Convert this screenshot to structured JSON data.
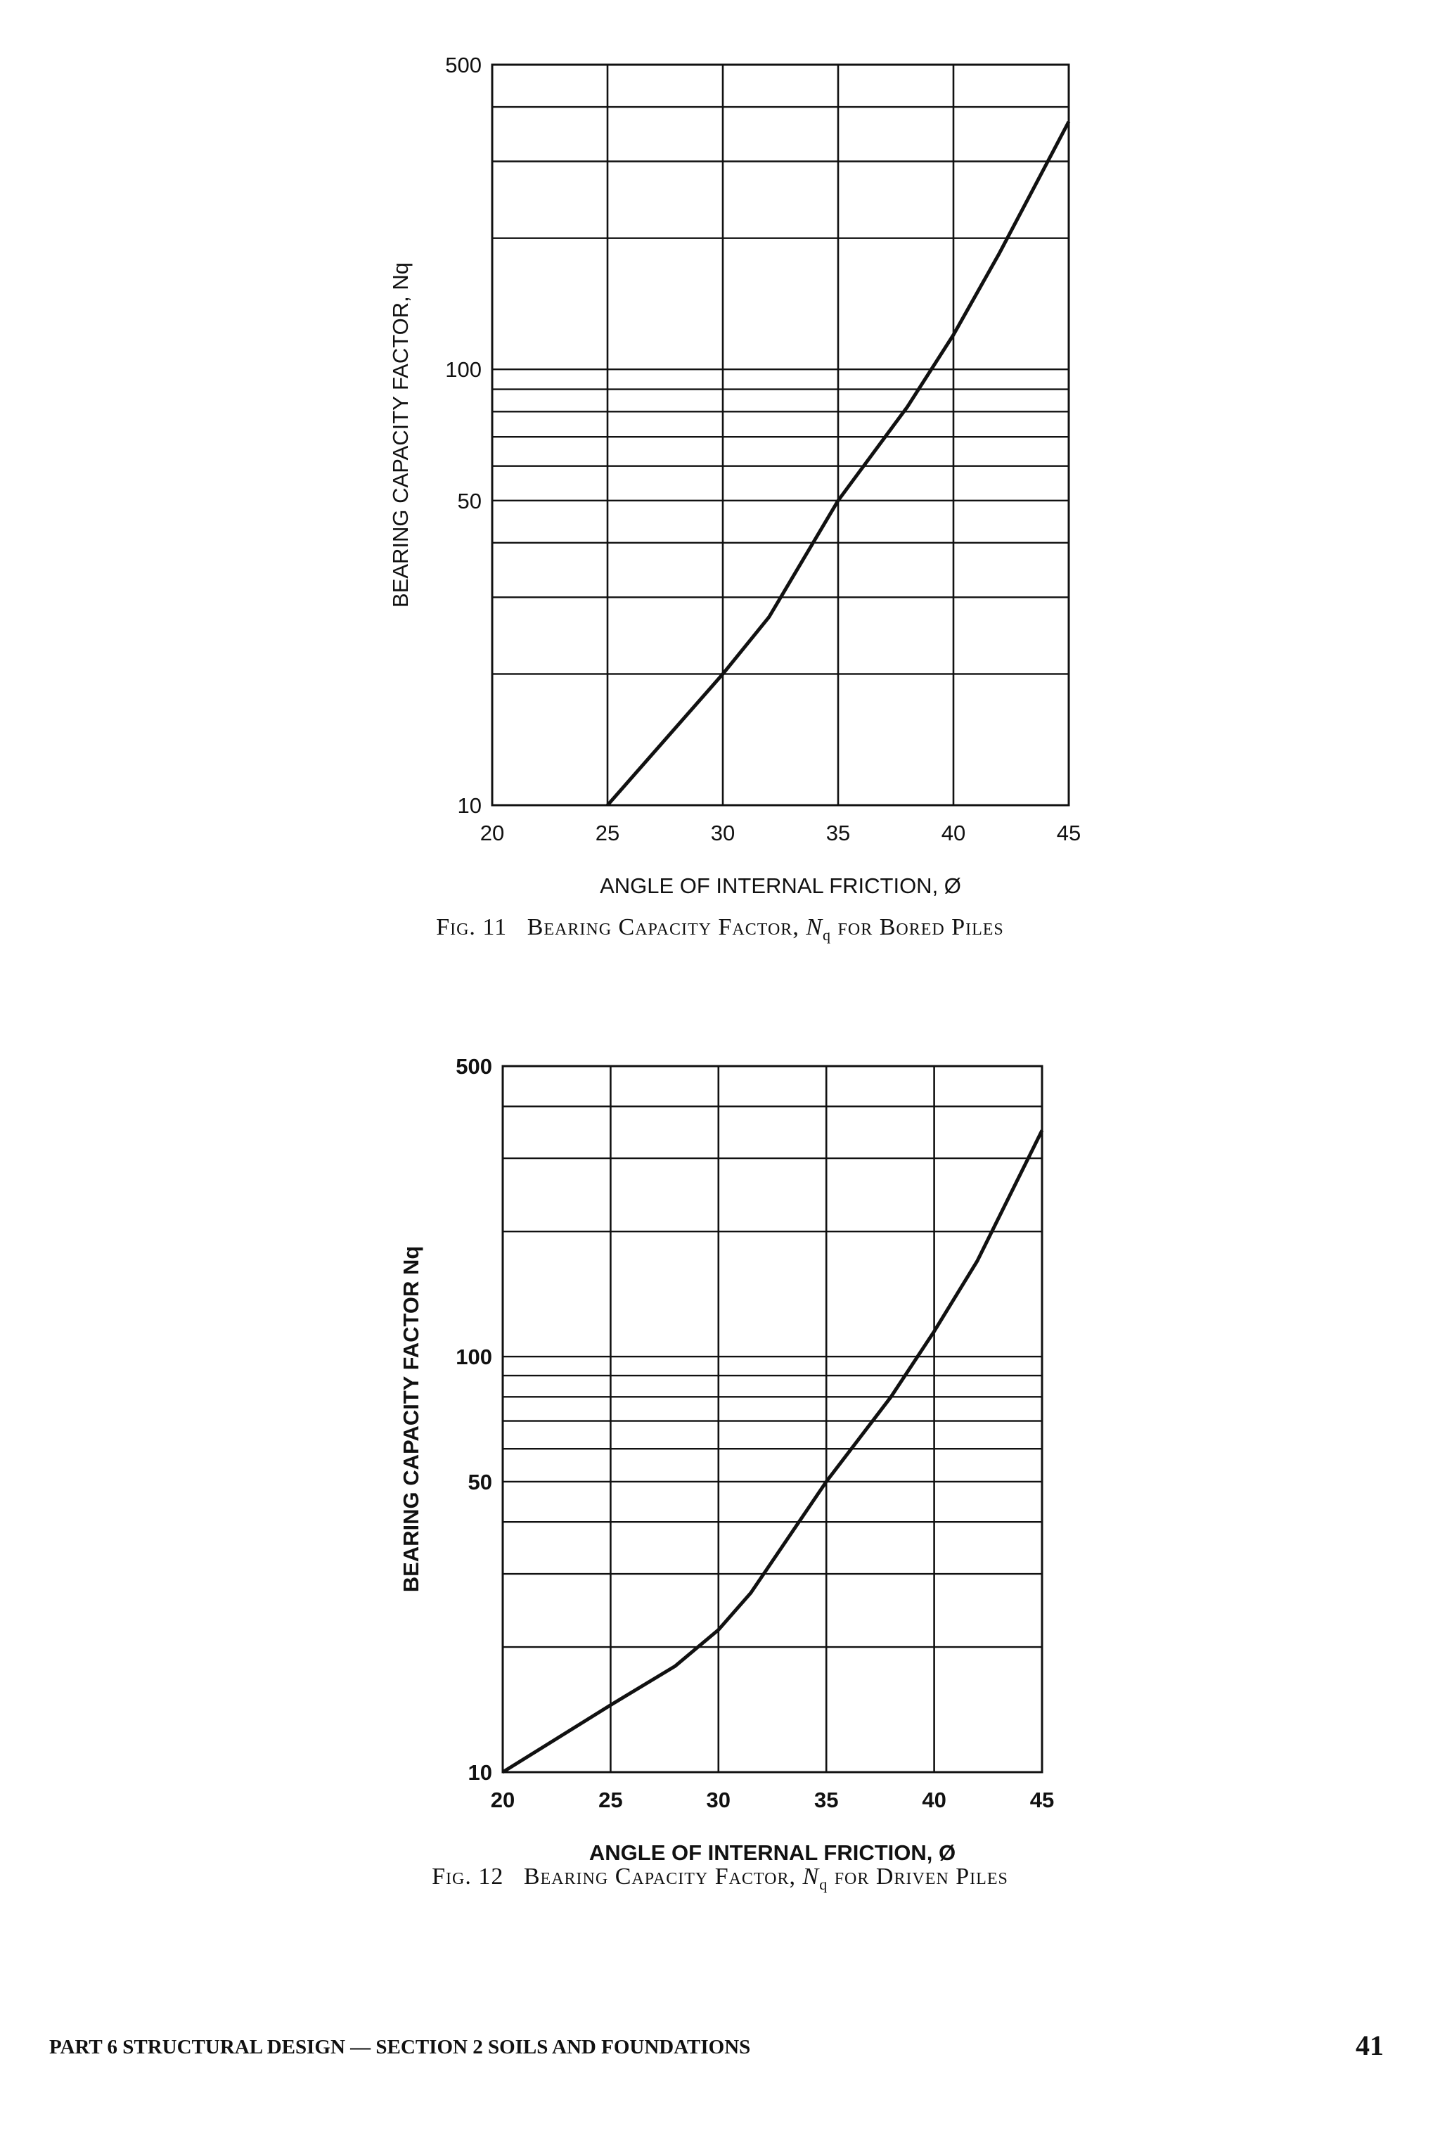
{
  "chart_data": [
    {
      "type": "line",
      "figure_label": "Fig. 11",
      "caption_prefix": "Bearing Capacity Factor,",
      "caption_symbol": "N",
      "caption_subscript": "q",
      "caption_suffix": "for Bored Piles",
      "ylabel": "BEARING CAPACITY FACTOR, Nq",
      "xlabel": "ANGLE OF INTERNAL FRICTION, Ø",
      "xlim": [
        20,
        45
      ],
      "ylim": [
        10,
        500
      ],
      "yscale": "log",
      "x_ticks": [
        "20",
        "25",
        "30",
        "35",
        "40",
        "45"
      ],
      "y_ticks": [
        "10",
        "50",
        "100",
        "500"
      ],
      "grid": true,
      "series": [
        {
          "name": "Nq",
          "x": [
            25,
            30,
            32,
            35,
            38,
            40,
            42,
            45
          ],
          "y": [
            10,
            20,
            27,
            50,
            82,
            120,
            185,
            370
          ]
        }
      ]
    },
    {
      "type": "line",
      "figure_label": "Fig. 12",
      "caption_prefix": "Bearing Capacity Factor,",
      "caption_symbol": "N",
      "caption_subscript": "q",
      "caption_suffix": "for Driven Piles",
      "ylabel": "BEARING CAPACITY FACTOR Nq",
      "xlabel": "ANGLE OF INTERNAL FRICTION, Ø",
      "xlim": [
        20,
        45
      ],
      "ylim": [
        10,
        500
      ],
      "yscale": "log",
      "x_ticks": [
        "20",
        "25",
        "30",
        "35",
        "40",
        "45"
      ],
      "y_ticks": [
        "10",
        "50",
        "100",
        "500"
      ],
      "grid": true,
      "series": [
        {
          "name": "Nq",
          "x": [
            20,
            25,
            28,
            30,
            31.5,
            35,
            38,
            40,
            42,
            45
          ],
          "y": [
            10,
            14.5,
            18,
            22,
            27,
            50,
            80,
            115,
            170,
            350
          ]
        }
      ]
    }
  ],
  "footer": {
    "left": "PART 6 STRUCTURAL DESIGN — SECTION 2 SOILS AND FOUNDATIONS",
    "page_number": "41"
  }
}
